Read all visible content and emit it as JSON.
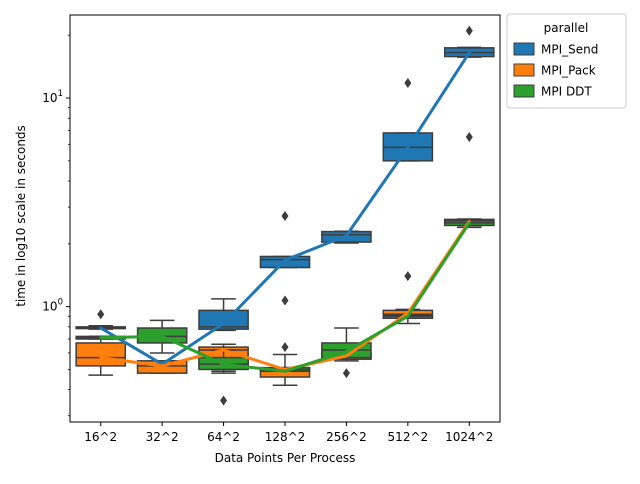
{
  "chart_data": {
    "type": "box",
    "title": "",
    "xlabel": "Data Points Per Process",
    "ylabel": "time in log10 scale in seconds",
    "yscale": "log",
    "ylim": [
      0.28,
      25
    ],
    "yticks": [
      {
        "value": 1,
        "label": "10^0"
      },
      {
        "value": 10,
        "label": "10^1"
      }
    ],
    "categories": [
      "16^2",
      "32^2",
      "64^2",
      "128^2",
      "256^2",
      "512^2",
      "1024^2"
    ],
    "legend": {
      "title": "parallel",
      "position": "upper-right-outside"
    },
    "grid": false,
    "series": [
      {
        "name": "MPI_Send",
        "color": "#1f77b4",
        "boxes": [
          {
            "whislo": 0.78,
            "q1": 0.785,
            "med": 0.79,
            "q3": 0.8,
            "whishi": 0.81,
            "fliers": [
              0.92
            ]
          },
          {
            "whislo": 0.52,
            "q1": 0.52,
            "med": 0.52,
            "q3": 0.52,
            "whishi": 0.52,
            "fliers": []
          },
          {
            "whislo": 0.77,
            "q1": 0.78,
            "med": 0.8,
            "q3": 0.96,
            "whishi": 1.09,
            "fliers": []
          },
          {
            "whislo": 1.54,
            "q1": 1.54,
            "med": 1.68,
            "q3": 1.74,
            "whishi": 1.74,
            "fliers": [
              1.07,
              2.72
            ]
          },
          {
            "whislo": 2.02,
            "q1": 2.04,
            "med": 2.21,
            "q3": 2.29,
            "whishi": 2.3,
            "fliers": []
          },
          {
            "whislo": 5.0,
            "q1": 5.0,
            "med": 5.8,
            "q3": 6.8,
            "whishi": 6.8,
            "fliers": [
              11.8
            ]
          },
          {
            "whislo": 15.7,
            "q1": 15.8,
            "med": 16.5,
            "q3": 17.4,
            "whishi": 17.5,
            "fliers": [
              6.5,
              21.0
            ]
          }
        ],
        "line": [
          0.79,
          0.53,
          0.83,
          1.67,
          2.19,
          5.8,
          16.5
        ]
      },
      {
        "name": "MPI_Pack",
        "color": "#ff7f0e",
        "boxes": [
          {
            "whislo": 0.47,
            "q1": 0.52,
            "med": 0.57,
            "q3": 0.67,
            "whishi": 0.72,
            "fliers": []
          },
          {
            "whislo": 0.48,
            "q1": 0.48,
            "med": 0.52,
            "q3": 0.55,
            "whishi": 0.55,
            "fliers": []
          },
          {
            "whislo": 0.49,
            "q1": 0.52,
            "med": 0.62,
            "q3": 0.64,
            "whishi": 0.66,
            "fliers": [
              0.355
            ]
          },
          {
            "whislo": 0.42,
            "q1": 0.46,
            "med": 0.49,
            "q3": 0.51,
            "whishi": 0.59,
            "fliers": [
              0.64
            ]
          },
          {
            "whislo": 0.56,
            "q1": 0.56,
            "med": 0.58,
            "q3": 0.6,
            "whishi": 0.6,
            "fliers": []
          },
          {
            "whislo": 0.88,
            "q1": 0.9,
            "med": 0.92,
            "q3": 0.96,
            "whishi": 0.97,
            "fliers": [
              1.4
            ]
          },
          {
            "whislo": 2.45,
            "q1": 2.48,
            "med": 2.55,
            "q3": 2.62,
            "whishi": 2.63,
            "fliers": []
          }
        ],
        "line": [
          0.57,
          0.52,
          0.62,
          0.5,
          0.58,
          0.93,
          2.56
        ]
      },
      {
        "name": "MPI DDT",
        "color": "#2ca02c",
        "boxes": [
          {
            "whislo": 0.7,
            "q1": 0.7,
            "med": 0.71,
            "q3": 0.72,
            "whishi": 0.72,
            "fliers": []
          },
          {
            "whislo": 0.6,
            "q1": 0.67,
            "med": 0.72,
            "q3": 0.79,
            "whishi": 0.86,
            "fliers": []
          },
          {
            "whislo": 0.48,
            "q1": 0.5,
            "med": 0.53,
            "q3": 0.57,
            "whishi": 0.62,
            "fliers": []
          },
          {
            "whislo": 0.49,
            "q1": 0.49,
            "med": 0.5,
            "q3": 0.51,
            "whishi": 0.51,
            "fliers": []
          },
          {
            "whislo": 0.55,
            "q1": 0.57,
            "med": 0.62,
            "q3": 0.67,
            "whishi": 0.79,
            "fliers": [
              0.48
            ]
          },
          {
            "whislo": 0.83,
            "q1": 0.88,
            "med": 0.9,
            "q3": 0.91,
            "whishi": 0.91,
            "fliers": []
          },
          {
            "whislo": 2.4,
            "q1": 2.45,
            "med": 2.52,
            "q3": 2.58,
            "whishi": 2.6,
            "fliers": []
          }
        ],
        "line": [
          0.71,
          0.72,
          0.53,
          0.49,
          0.61,
          0.9,
          2.52
        ]
      }
    ]
  }
}
